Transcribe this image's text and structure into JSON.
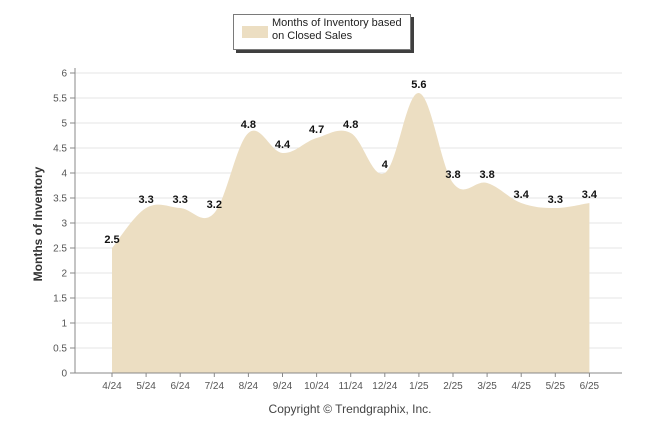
{
  "chart_data": {
    "type": "area",
    "categories": [
      "4/24",
      "5/24",
      "6/24",
      "7/24",
      "8/24",
      "9/24",
      "10/24",
      "11/24",
      "12/24",
      "1/25",
      "2/25",
      "3/25",
      "4/25",
      "5/25",
      "6/25"
    ],
    "series": [
      {
        "name": "Months of Inventory based on Closed Sales",
        "values": [
          2.5,
          3.3,
          3.3,
          3.2,
          4.8,
          4.4,
          4.7,
          4.8,
          4,
          5.6,
          3.8,
          3.8,
          3.4,
          3.3,
          3.4
        ],
        "data_labels": [
          "2.5",
          "3.3",
          "3.3",
          "3.2",
          "4.8",
          "4.4",
          "4.7",
          "4.8",
          "4",
          "5.6",
          "3.8",
          "3.8",
          "3.4",
          "3.3",
          "3.4"
        ],
        "color": "#ecdec2"
      }
    ],
    "ylabel": "Months of Inventory",
    "xlabel": "",
    "ylim": [
      0,
      6
    ],
    "yticks": [
      "0",
      "0.5",
      "1",
      "1.5",
      "2",
      "2.5",
      "3",
      "3.5",
      "4",
      "4.5",
      "5",
      "5.5",
      "6"
    ],
    "grid": true,
    "legend_position": "top-center",
    "legend_lines": [
      "Months of Inventory based",
      "on Closed Sales"
    ]
  },
  "footer": {
    "copyright": "Copyright © Trendgraphix, Inc."
  },
  "colors": {
    "area_fill": "#ecdec2",
    "gridline": "#e6e6e6",
    "axis": "#888888",
    "label_text": "#111111"
  }
}
